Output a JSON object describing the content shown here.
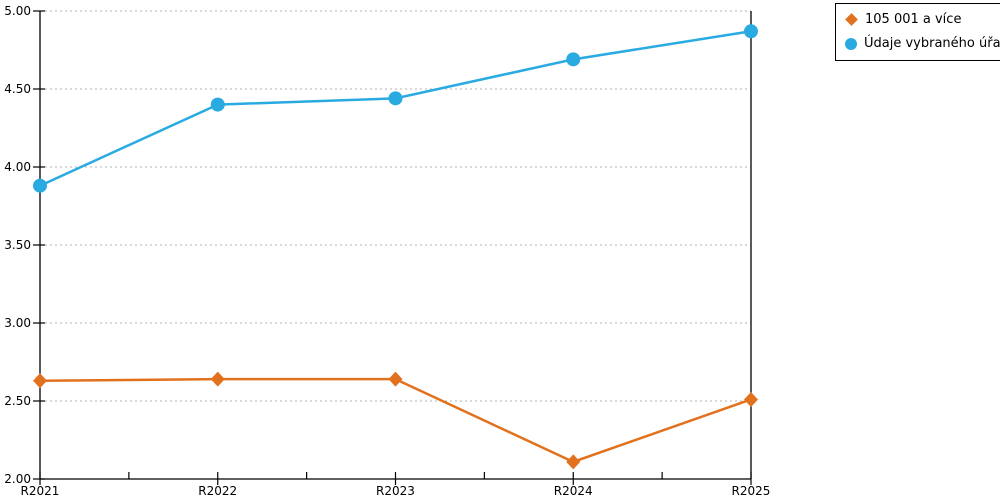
{
  "chart_data": {
    "type": "line",
    "title": "",
    "xlabel": "",
    "ylabel": "",
    "categories": [
      "R2021",
      "R2022",
      "R2023",
      "R2024",
      "R2025"
    ],
    "series": [
      {
        "name": "105 001 a více",
        "marker": "diamond",
        "color": "#E2711D",
        "values": [
          2.63,
          2.64,
          2.64,
          2.11,
          2.51
        ]
      },
      {
        "name": "Údaje vybraného úřadu",
        "marker": "circle",
        "color": "#29ABE2",
        "values": [
          3.88,
          4.4,
          4.44,
          4.69,
          4.87
        ]
      }
    ],
    "ylim": [
      2.0,
      5.0
    ],
    "ytick_step": 0.5,
    "y_tick_labels": [
      "2.00",
      "2.50",
      "3.00",
      "3.50",
      "4.00",
      "4.50",
      "5.00"
    ],
    "grid": "horizontal dotted",
    "legend_position": "top-right"
  },
  "colors": {
    "axis": "#000000",
    "grid": "#B3B3B3",
    "background": "#FFFFFF"
  }
}
